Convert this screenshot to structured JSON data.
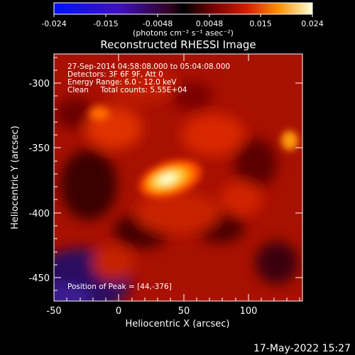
{
  "colorbar": {
    "ticks": [
      "-0.024",
      "-0.015",
      "-0.0048",
      "0.0048",
      "0.015",
      "0.024"
    ],
    "units": "(photons cm⁻² s⁻¹ asec⁻²)"
  },
  "title": "Reconstructed RHESSI Image",
  "info": {
    "time_range": "27-Sep-2014 04:58:08.000 to 05:04:08.000",
    "detectors": "Detectors: 3F 6F 9F, Att 0",
    "energy": "Energy Range: 6.0 - 12.0 keV",
    "method": "Clean     Total counts: 5.55E+04",
    "peak": "Position of Peak = [44,-376]"
  },
  "axes": {
    "xlabel": "Heliocentric X (arcsec)",
    "ylabel": "Heliocentric Y (arcsec)",
    "xticks": [
      "-50",
      "0",
      "50",
      "100"
    ],
    "yticks": [
      "-300",
      "-350",
      "-400",
      "-450"
    ]
  },
  "timestamp": "17-May-2022 15:27",
  "colors": {
    "background": "#000000",
    "foreground": "#ffffff"
  }
}
